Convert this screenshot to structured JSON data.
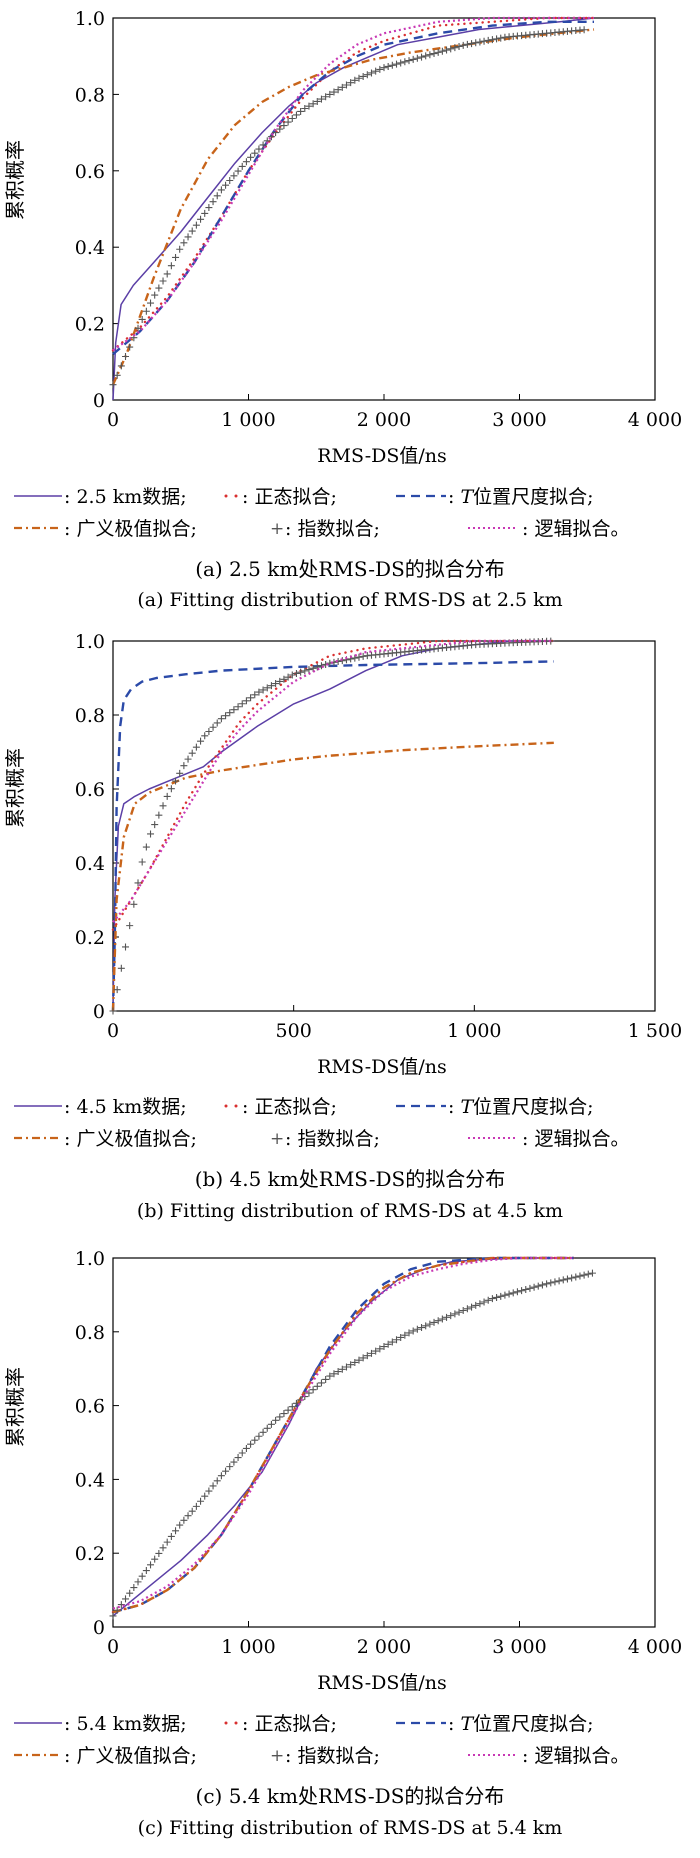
{
  "colors": {
    "data_purple": "#5b3fa6",
    "normal_red": "#d93030",
    "t_blue": "#2b4aa8",
    "gev_orange": "#c8641a",
    "exp_gray": "#555555",
    "logistic_magenta": "#c838b4"
  },
  "shared": {
    "ylabel": "累积概率",
    "xlabel": "RMS-DS值/ns",
    "yticks": [
      "0",
      "0.2",
      "0.4",
      "0.6",
      "0.8",
      "1.0"
    ],
    "legend_line1": [
      ": 正态拟合;",
      ": ",
      "T",
      "位置尺度拟合;"
    ],
    "legend_line2": [
      ": 广义极值拟合;",
      ": 指数拟合;",
      ": 逻辑拟合。"
    ]
  },
  "chart_data": [
    {
      "type": "line",
      "xlim": [
        0,
        4000
      ],
      "ylim": [
        0,
        1
      ],
      "xticks": [
        "0",
        "1 000",
        "2 000",
        "3 000",
        "4 000"
      ],
      "legend_data": ": 2.5 km数据;",
      "caption_cn": "(a) 2.5 km处RMS-DS的拟合分布",
      "caption_en": "(a) Fitting distribution of RMS-DS at 2.5 km",
      "series": [
        {
          "name": "2.5 km数据",
          "key": "data",
          "x": [
            0,
            20,
            60,
            150,
            300,
            500,
            700,
            900,
            1100,
            1300,
            1500,
            1700,
            1900,
            2100,
            2400,
            2700,
            3000,
            3300,
            3550
          ],
          "y": [
            0.0,
            0.15,
            0.25,
            0.3,
            0.36,
            0.44,
            0.53,
            0.62,
            0.7,
            0.77,
            0.83,
            0.87,
            0.9,
            0.93,
            0.95,
            0.97,
            0.98,
            0.99,
            1.0
          ]
        },
        {
          "name": "正态拟合",
          "key": "normal",
          "x": [
            0,
            200,
            400,
            600,
            800,
            1000,
            1200,
            1400,
            1600,
            1800,
            2000,
            2400,
            2800,
            3200,
            3550
          ],
          "y": [
            0.13,
            0.19,
            0.27,
            0.37,
            0.48,
            0.6,
            0.7,
            0.79,
            0.86,
            0.91,
            0.94,
            0.98,
            0.99,
            1.0,
            1.0
          ]
        },
        {
          "name": "T位置尺度拟合",
          "key": "t",
          "x": [
            0,
            200,
            400,
            600,
            800,
            1000,
            1200,
            1400,
            1600,
            1800,
            2000,
            2400,
            2800,
            3200,
            3550
          ],
          "y": [
            0.12,
            0.18,
            0.26,
            0.36,
            0.48,
            0.6,
            0.71,
            0.8,
            0.86,
            0.9,
            0.93,
            0.96,
            0.98,
            0.99,
            0.99
          ]
        },
        {
          "name": "广义极值拟合",
          "key": "gev",
          "x": [
            0,
            100,
            300,
            500,
            700,
            900,
            1100,
            1300,
            1500,
            1700,
            1900,
            2200,
            2600,
            3000,
            3550
          ],
          "y": [
            0.04,
            0.12,
            0.32,
            0.5,
            0.63,
            0.72,
            0.78,
            0.82,
            0.85,
            0.87,
            0.89,
            0.91,
            0.93,
            0.95,
            0.97
          ]
        },
        {
          "name": "指数拟合",
          "key": "exp",
          "x": [
            0,
            100,
            200,
            300,
            400,
            500,
            600,
            700,
            800,
            900,
            1000,
            1200,
            1400,
            1600,
            1800,
            2000,
            2300,
            2600,
            2900,
            3200,
            3500
          ],
          "y": [
            0.04,
            0.12,
            0.2,
            0.27,
            0.33,
            0.4,
            0.45,
            0.5,
            0.55,
            0.59,
            0.63,
            0.7,
            0.76,
            0.8,
            0.84,
            0.87,
            0.9,
            0.93,
            0.95,
            0.96,
            0.97
          ]
        },
        {
          "name": "逻辑拟合",
          "key": "logistic",
          "x": [
            0,
            200,
            400,
            600,
            800,
            1000,
            1200,
            1400,
            1600,
            1800,
            2000,
            2400,
            2800,
            3200,
            3550
          ],
          "y": [
            0.13,
            0.18,
            0.26,
            0.36,
            0.47,
            0.59,
            0.71,
            0.81,
            0.88,
            0.93,
            0.96,
            0.99,
            1.0,
            1.0,
            1.0
          ]
        }
      ]
    },
    {
      "type": "line",
      "xlim": [
        0,
        1500
      ],
      "ylim": [
        0,
        1
      ],
      "xticks": [
        "0",
        "500",
        "1 000",
        "1 500"
      ],
      "legend_data": ": 4.5 km数据;",
      "caption_cn": "(b) 4.5 km处RMS-DS的拟合分布",
      "caption_en": "(b) Fitting distribution of RMS-DS at 4.5 km",
      "series": [
        {
          "name": "4.5 km数据",
          "key": "data",
          "x": [
            0,
            5,
            15,
            30,
            60,
            100,
            150,
            200,
            250,
            300,
            400,
            500,
            600,
            700,
            800,
            900,
            1000,
            1100,
            1220
          ],
          "y": [
            0.0,
            0.3,
            0.5,
            0.56,
            0.58,
            0.6,
            0.62,
            0.64,
            0.66,
            0.7,
            0.77,
            0.83,
            0.87,
            0.92,
            0.96,
            0.98,
            0.99,
            1.0,
            1.0
          ]
        },
        {
          "name": "正态拟合",
          "key": "normal",
          "x": [
            0,
            50,
            100,
            150,
            200,
            250,
            300,
            350,
            400,
            500,
            600,
            700,
            800,
            900,
            1000,
            1220
          ],
          "y": [
            0.22,
            0.3,
            0.38,
            0.47,
            0.56,
            0.64,
            0.71,
            0.78,
            0.83,
            0.91,
            0.96,
            0.98,
            0.99,
            1.0,
            1.0,
            1.0
          ]
        },
        {
          "name": "T位置尺度拟合",
          "key": "t",
          "x": [
            0,
            5,
            10,
            20,
            30,
            50,
            80,
            120,
            200,
            300,
            500,
            700,
            1000,
            1220
          ],
          "y": [
            0.0,
            0.2,
            0.55,
            0.77,
            0.84,
            0.87,
            0.89,
            0.9,
            0.91,
            0.92,
            0.93,
            0.935,
            0.94,
            0.945
          ]
        },
        {
          "name": "广义极值拟合",
          "key": "gev",
          "x": [
            0,
            10,
            30,
            60,
            100,
            150,
            200,
            300,
            400,
            500,
            600,
            800,
            1000,
            1220
          ],
          "y": [
            0.0,
            0.3,
            0.47,
            0.56,
            0.59,
            0.61,
            0.63,
            0.65,
            0.665,
            0.68,
            0.69,
            0.705,
            0.715,
            0.725
          ]
        },
        {
          "name": "指数拟合",
          "key": "exp",
          "x": [
            0,
            20,
            40,
            60,
            80,
            100,
            150,
            200,
            250,
            300,
            400,
            500,
            600,
            700,
            800,
            900,
            1000,
            1100,
            1220
          ],
          "y": [
            0.0,
            0.1,
            0.2,
            0.3,
            0.4,
            0.47,
            0.58,
            0.67,
            0.74,
            0.79,
            0.86,
            0.91,
            0.94,
            0.96,
            0.97,
            0.98,
            0.99,
            0.995,
            1.0
          ]
        },
        {
          "name": "逻辑拟合",
          "key": "logistic",
          "x": [
            0,
            50,
            100,
            150,
            200,
            250,
            300,
            350,
            400,
            500,
            600,
            700,
            800,
            900,
            1000,
            1220
          ],
          "y": [
            0.24,
            0.3,
            0.38,
            0.46,
            0.54,
            0.62,
            0.7,
            0.76,
            0.81,
            0.89,
            0.94,
            0.97,
            0.98,
            0.99,
            1.0,
            1.0
          ]
        }
      ]
    },
    {
      "type": "line",
      "xlim": [
        0,
        4000
      ],
      "ylim": [
        0,
        1
      ],
      "xticks": [
        "0",
        "1 000",
        "2 000",
        "3 000",
        "4 000"
      ],
      "legend_data": ": 5.4 km数据;",
      "caption_cn": "(c) 5.4 km处RMS-DS的拟合分布",
      "caption_en": "(c)  Fitting distribution of RMS-DS at 5.4 km",
      "series": [
        {
          "name": "5.4 km数据",
          "key": "data",
          "x": [
            0,
            100,
            300,
            500,
            700,
            900,
            1100,
            1300,
            1500,
            1700,
            1900,
            2100,
            2300,
            2500,
            2700,
            3000,
            3300
          ],
          "y": [
            0.03,
            0.06,
            0.12,
            0.18,
            0.25,
            0.33,
            0.42,
            0.55,
            0.7,
            0.8,
            0.88,
            0.94,
            0.97,
            0.99,
            0.995,
            1.0,
            1.0
          ]
        },
        {
          "name": "正态拟合",
          "key": "normal",
          "x": [
            0,
            200,
            400,
            600,
            800,
            1000,
            1200,
            1400,
            1600,
            1800,
            2000,
            2200,
            2400,
            2600,
            2800,
            3000,
            3400
          ],
          "y": [
            0.04,
            0.06,
            0.1,
            0.16,
            0.25,
            0.37,
            0.5,
            0.63,
            0.75,
            0.85,
            0.92,
            0.96,
            0.98,
            0.99,
            1.0,
            1.0,
            1.0
          ]
        },
        {
          "name": "T位置尺度拟合",
          "key": "t",
          "x": [
            0,
            200,
            400,
            600,
            800,
            1000,
            1200,
            1400,
            1600,
            1800,
            2000,
            2200,
            2400,
            2600,
            2800,
            3000,
            3400
          ],
          "y": [
            0.04,
            0.06,
            0.1,
            0.16,
            0.25,
            0.37,
            0.5,
            0.63,
            0.76,
            0.86,
            0.93,
            0.97,
            0.99,
            0.995,
            1.0,
            1.0,
            1.0
          ]
        },
        {
          "name": "广义极值拟合",
          "key": "gev",
          "x": [
            0,
            200,
            400,
            600,
            800,
            1000,
            1200,
            1400,
            1600,
            1800,
            2000,
            2200,
            2400,
            2600,
            2800,
            3000,
            3400
          ],
          "y": [
            0.04,
            0.06,
            0.1,
            0.16,
            0.25,
            0.37,
            0.5,
            0.63,
            0.75,
            0.85,
            0.92,
            0.96,
            0.98,
            0.99,
            1.0,
            1.0,
            1.0
          ]
        },
        {
          "name": "指数拟合",
          "key": "exp",
          "x": [
            0,
            100,
            200,
            300,
            400,
            500,
            600,
            800,
            1000,
            1200,
            1400,
            1600,
            1800,
            2000,
            2200,
            2400,
            2600,
            2800,
            3000,
            3200,
            3550
          ],
          "y": [
            0.03,
            0.08,
            0.13,
            0.18,
            0.23,
            0.28,
            0.32,
            0.41,
            0.49,
            0.56,
            0.62,
            0.68,
            0.72,
            0.76,
            0.8,
            0.83,
            0.86,
            0.89,
            0.91,
            0.93,
            0.96
          ]
        },
        {
          "name": "逻辑拟合",
          "key": "logistic",
          "x": [
            0,
            200,
            400,
            600,
            800,
            1000,
            1200,
            1400,
            1600,
            1800,
            2000,
            2200,
            2400,
            2600,
            2800,
            3000,
            3400
          ],
          "y": [
            0.05,
            0.07,
            0.11,
            0.17,
            0.25,
            0.36,
            0.49,
            0.62,
            0.74,
            0.84,
            0.91,
            0.95,
            0.97,
            0.985,
            0.995,
            1.0,
            1.0
          ]
        }
      ]
    }
  ]
}
